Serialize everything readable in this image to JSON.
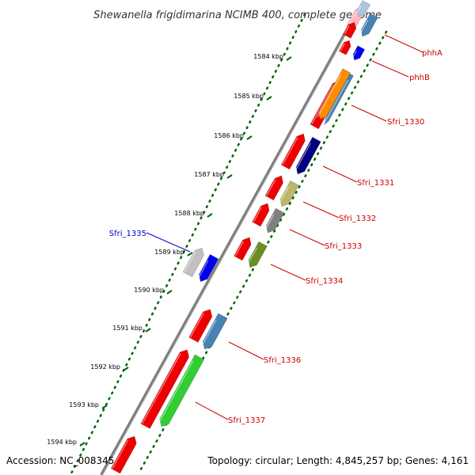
{
  "title": "Shewanella frigidimarina NCIMB 400, complete genome",
  "footer": {
    "accession": "Accession: NC_008345",
    "topology": "Topology: circular; Length: 4,845,257 bp; Genes: 4,161"
  },
  "scale_ticks": [
    "1584 kbp",
    "1585 kbp",
    "1586 kbp",
    "1587 kbp",
    "1588 kbp",
    "1589 kbp",
    "1590 kbp",
    "1591 kbp",
    "1592 kbp",
    "1593 kbp",
    "1594 kbp"
  ],
  "gene_labels": [
    {
      "name": "phhA",
      "color": "#cc0000"
    },
    {
      "name": "phhB",
      "color": "#cc0000"
    },
    {
      "name": "Sfri_1330",
      "color": "#cc0000"
    },
    {
      "name": "Sfri_1331",
      "color": "#cc0000"
    },
    {
      "name": "Sfri_1332",
      "color": "#cc0000"
    },
    {
      "name": "Sfri_1333",
      "color": "#cc0000"
    },
    {
      "name": "Sfri_1334",
      "color": "#cc0000"
    },
    {
      "name": "Sfri_1335",
      "color": "#0000cc"
    },
    {
      "name": "Sfri_1336",
      "color": "#cc0000"
    },
    {
      "name": "Sfri_1337",
      "color": "#cc0000"
    }
  ],
  "colors": {
    "red": "#ee0000",
    "blue": "#0000ee",
    "steelblue": "#4682b4",
    "orange": "#ff8c00",
    "navy": "#000080",
    "khaki": "#bdb76b",
    "gray": "#808080",
    "olive": "#6b8e23",
    "silver": "#c0c0c0",
    "green": "#32cd32",
    "pink": "#ffb6c1",
    "lightsteelblue": "#b0c4de",
    "backbone": "#808080",
    "dots": "#006400"
  }
}
